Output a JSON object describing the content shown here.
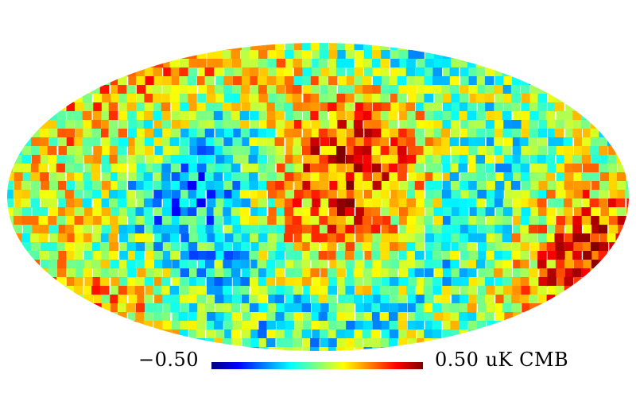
{
  "colorbar": {
    "min_label": "−0.50",
    "max_label": "0.50 uK CMB",
    "stops": [
      "#00007f",
      "#0000ff",
      "#007fff",
      "#00ffff",
      "#7fff7f",
      "#ffff00",
      "#ff7f00",
      "#ff0000",
      "#7f0000"
    ]
  },
  "map": {
    "projection": "mollweide",
    "colormap": "jet",
    "range": [
      -0.5,
      0.5
    ],
    "units": "uK CMB",
    "pixelization": "HEALPix",
    "background": "#ffffff"
  }
}
